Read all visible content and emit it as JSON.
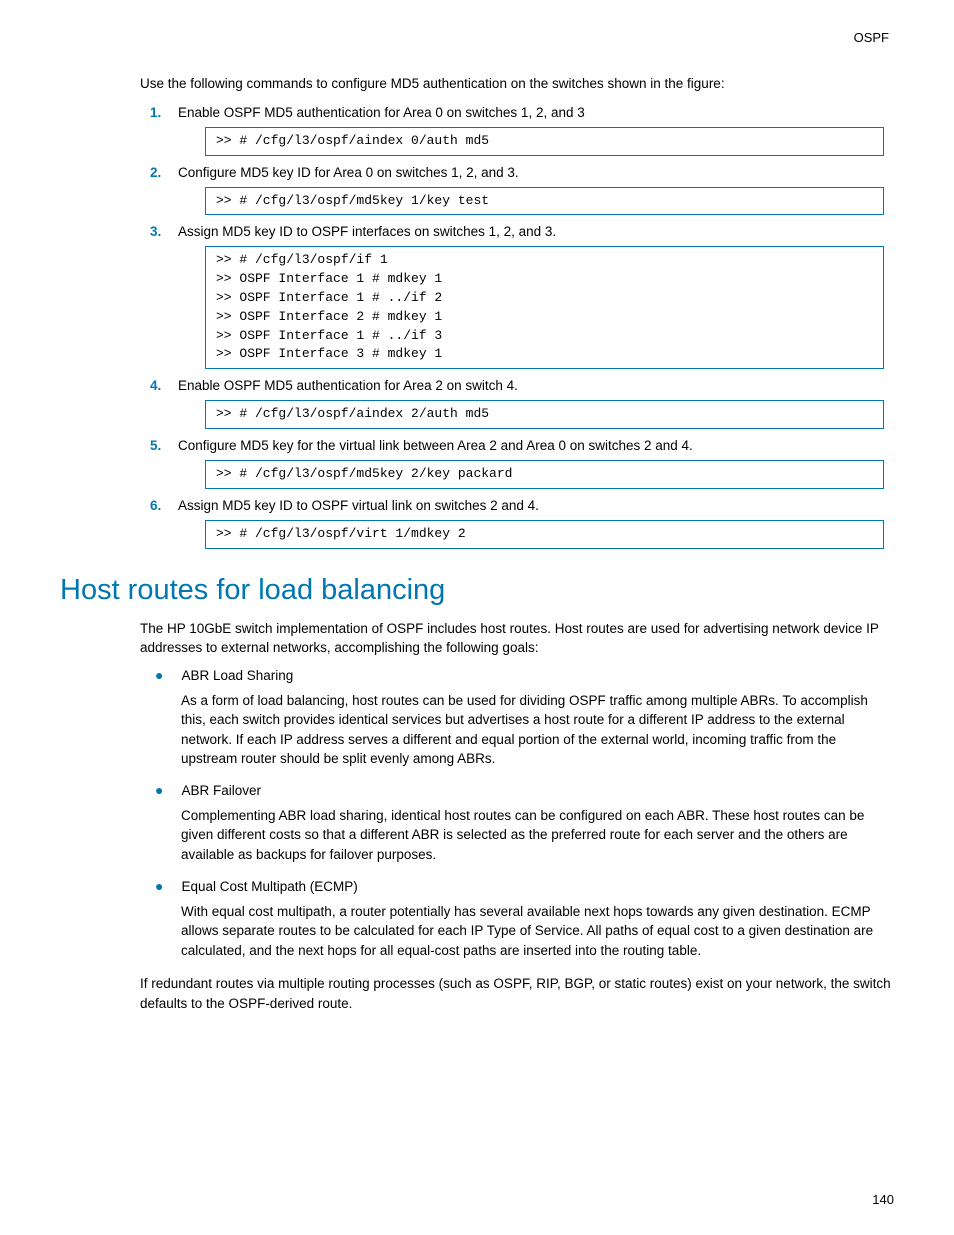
{
  "header": {
    "section": "OSPF"
  },
  "intro": "Use the following commands to configure MD5 authentication on the switches shown in the figure:",
  "steps": [
    {
      "num": "1.",
      "text": "Enable OSPF MD5 authentication for Area 0 on switches 1, 2, and 3",
      "code": ">> # /cfg/l3/ospf/aindex 0/auth md5"
    },
    {
      "num": "2.",
      "text": "Configure MD5 key ID for Area 0 on switches 1, 2, and 3.",
      "code": ">> # /cfg/l3/ospf/md5key 1/key test"
    },
    {
      "num": "3.",
      "text": "Assign MD5 key ID to OSPF interfaces on switches 1, 2, and 3.",
      "code": ">> # /cfg/l3/ospf/if 1\n>> OSPF Interface 1 # mdkey 1\n>> OSPF Interface 1 # ../if 2\n>> OSPF Interface 2 # mdkey 1\n>> OSPF Interface 1 # ../if 3\n>> OSPF Interface 3 # mdkey 1"
    },
    {
      "num": "4.",
      "text": "Enable OSPF MD5 authentication for Area 2 on switch 4.",
      "code": ">> # /cfg/l3/ospf/aindex 2/auth md5"
    },
    {
      "num": "5.",
      "text": "Configure MD5 key for the virtual link between Area 2 and Area 0 on switches 2 and 4.",
      "code": ">> # /cfg/l3/ospf/md5key 2/key packard"
    },
    {
      "num": "6.",
      "text": "Assign MD5 key ID to OSPF virtual link on switches 2 and 4.",
      "code": ">> # /cfg/l3/ospf/virt 1/mdkey 2"
    }
  ],
  "heading": "Host routes for load balancing",
  "para1": "The HP 10GbE switch implementation of OSPF includes host routes. Host routes are used for advertising network device IP addresses to external networks, accomplishing the following goals:",
  "bullets": [
    {
      "title": "ABR Load Sharing",
      "body": "As a form of load balancing, host routes can be used for dividing OSPF traffic among multiple ABRs. To accomplish this, each switch provides identical services but advertises a host route for a different IP address to the external network. If each IP address serves a different and equal portion of the external world, incoming traffic from the upstream router should be split evenly among ABRs."
    },
    {
      "title": "ABR Failover",
      "body": "Complementing ABR load sharing, identical host routes can be configured on each ABR. These host routes can be given different costs so that a different ABR is selected as the preferred route for each server and the others are available as backups for failover purposes."
    },
    {
      "title": "Equal Cost Multipath (ECMP)",
      "body": "With equal cost multipath, a router potentially has several available next hops towards any given destination. ECMP allows separate routes to be calculated for each IP Type of Service. All paths of equal cost to a given destination are calculated, and the next hops for all equal-cost paths are inserted into the routing table."
    }
  ],
  "para2": "If redundant routes via multiple routing processes (such as OSPF, RIP, BGP, or static routes) exist on your network, the switch defaults to the OSPF-derived route.",
  "pagenum": "140",
  "colors": {
    "accent": "#0077b3"
  }
}
